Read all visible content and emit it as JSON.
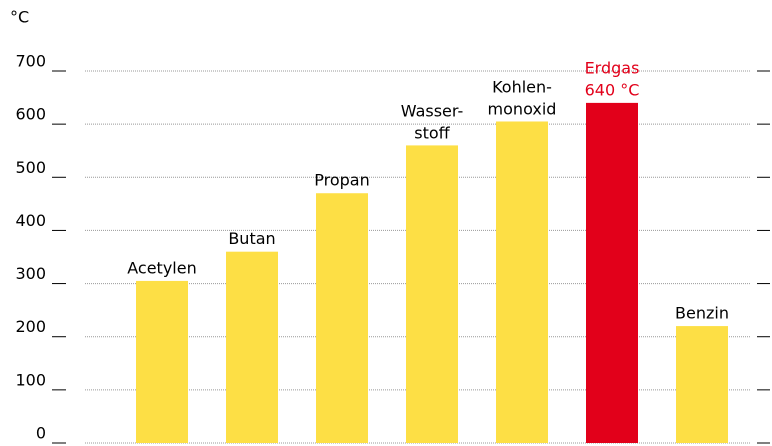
{
  "chart_data": {
    "type": "bar",
    "y_unit": "°C",
    "categories": [
      "Acetylen",
      "Butan",
      "Propan",
      "Wasser-\nstoff",
      "Kohlen-\nmonoxid",
      "Erdgas",
      "Benzin"
    ],
    "values": [
      305,
      360,
      470,
      560,
      605,
      640,
      220
    ],
    "value_labels": [
      null,
      null,
      null,
      null,
      null,
      "640 °C",
      null
    ],
    "colors": [
      "#fddf45",
      "#fddf45",
      "#fddf45",
      "#fddf45",
      "#fddf45",
      "#e2001a",
      "#fddf45"
    ],
    "ylim": [
      0,
      700
    ],
    "yticks": [
      0,
      100,
      200,
      300,
      400,
      500,
      600,
      700
    ],
    "grid": true
  }
}
